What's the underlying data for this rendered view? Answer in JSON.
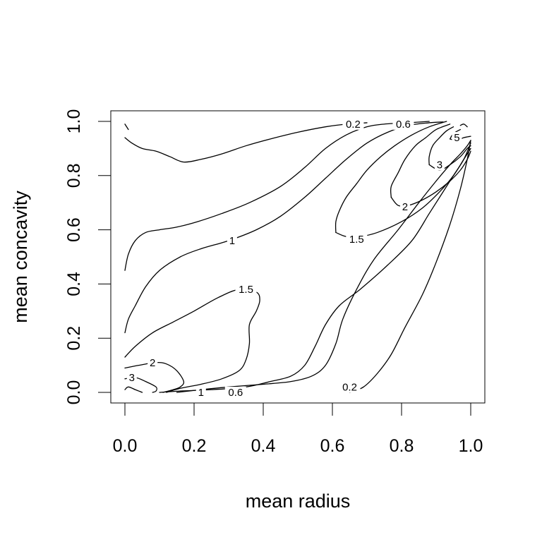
{
  "chart_data": {
    "type": "contour",
    "title": "",
    "xlabel": "mean radius",
    "ylabel": "mean concavity",
    "xlim": [
      0.0,
      1.0
    ],
    "ylim": [
      0.0,
      1.0
    ],
    "x_ticks": [
      "0.0",
      "0.2",
      "0.4",
      "0.6",
      "0.8",
      "1.0"
    ],
    "y_ticks": [
      "0.0",
      "0.2",
      "0.4",
      "0.6",
      "0.8",
      "1.0"
    ],
    "grid": false,
    "levels": [
      {
        "level": "0.2",
        "paths": [
          [
            [
              0.0,
              0.99
            ],
            [
              0.01,
              0.97
            ]
          ],
          [
            [
              0.0,
              0.94
            ],
            [
              0.02,
              0.92
            ],
            [
              0.05,
              0.9
            ],
            [
              0.09,
              0.89
            ],
            [
              0.13,
              0.87
            ],
            [
              0.17,
              0.85
            ],
            [
              0.22,
              0.86
            ],
            [
              0.28,
              0.88
            ],
            [
              0.35,
              0.91
            ],
            [
              0.42,
              0.935
            ],
            [
              0.5,
              0.96
            ],
            [
              0.58,
              0.98
            ],
            [
              0.64,
              0.99
            ],
            [
              0.7,
              0.995
            ]
          ],
          [
            [
              0.65,
              0.0
            ],
            [
              0.69,
              0.02
            ],
            [
              0.73,
              0.07
            ],
            [
              0.77,
              0.14
            ],
            [
              0.81,
              0.24
            ],
            [
              0.86,
              0.36
            ],
            [
              0.9,
              0.48
            ],
            [
              0.94,
              0.62
            ],
            [
              0.97,
              0.75
            ],
            [
              0.99,
              0.86
            ],
            [
              1.0,
              0.93
            ]
          ]
        ],
        "label_positions": [
          [
            0.66,
            0.99
          ],
          [
            0.65,
            0.02
          ]
        ]
      },
      {
        "level": "0.6",
        "paths": [
          [
            [
              0.0,
              0.45
            ],
            [
              0.01,
              0.51
            ],
            [
              0.03,
              0.56
            ],
            [
              0.06,
              0.59
            ],
            [
              0.1,
              0.6
            ],
            [
              0.15,
              0.61
            ],
            [
              0.21,
              0.63
            ],
            [
              0.28,
              0.66
            ],
            [
              0.36,
              0.7
            ],
            [
              0.45,
              0.76
            ],
            [
              0.52,
              0.83
            ],
            [
              0.58,
              0.9
            ],
            [
              0.64,
              0.95
            ],
            [
              0.7,
              0.98
            ],
            [
              0.75,
              0.99
            ],
            [
              0.82,
              0.995
            ],
            [
              0.88,
              1.0
            ]
          ],
          [
            [
              0.15,
              0.0
            ],
            [
              0.22,
              0.01
            ],
            [
              0.3,
              0.02
            ],
            [
              0.4,
              0.03
            ],
            [
              0.48,
              0.04
            ],
            [
              0.54,
              0.06
            ],
            [
              0.58,
              0.1
            ],
            [
              0.61,
              0.18
            ],
            [
              0.63,
              0.27
            ],
            [
              0.67,
              0.38
            ],
            [
              0.72,
              0.49
            ],
            [
              0.79,
              0.6
            ],
            [
              0.85,
              0.7
            ],
            [
              0.9,
              0.78
            ],
            [
              0.94,
              0.84
            ],
            [
              0.97,
              0.88
            ],
            [
              0.99,
              0.91
            ],
            [
              1.0,
              0.93
            ]
          ]
        ],
        "label_positions": [
          [
            0.805,
            0.99
          ],
          [
            0.32,
            0.0
          ]
        ]
      },
      {
        "level": "1",
        "paths": [
          [
            [
              0.0,
              0.22
            ],
            [
              0.01,
              0.27
            ],
            [
              0.03,
              0.32
            ],
            [
              0.06,
              0.39
            ],
            [
              0.1,
              0.45
            ],
            [
              0.16,
              0.5
            ],
            [
              0.22,
              0.53
            ],
            [
              0.3,
              0.56
            ],
            [
              0.38,
              0.6
            ],
            [
              0.45,
              0.65
            ],
            [
              0.52,
              0.72
            ],
            [
              0.58,
              0.79
            ],
            [
              0.64,
              0.86
            ],
            [
              0.7,
              0.92
            ],
            [
              0.76,
              0.96
            ],
            [
              0.82,
              0.985
            ],
            [
              0.88,
              0.995
            ],
            [
              0.92,
              0.998
            ]
          ],
          [
            [
              0.1,
              0.0
            ],
            [
              0.16,
              0.005
            ],
            [
              0.25,
              0.01
            ],
            [
              0.35,
              0.02
            ],
            [
              0.42,
              0.04
            ],
            [
              0.48,
              0.06
            ],
            [
              0.52,
              0.1
            ],
            [
              0.55,
              0.17
            ],
            [
              0.58,
              0.25
            ],
            [
              0.62,
              0.32
            ],
            [
              0.68,
              0.38
            ],
            [
              0.76,
              0.47
            ],
            [
              0.83,
              0.56
            ],
            [
              0.88,
              0.66
            ],
            [
              0.92,
              0.74
            ],
            [
              0.95,
              0.8
            ],
            [
              0.98,
              0.86
            ],
            [
              1.0,
              0.92
            ]
          ]
        ],
        "label_positions": [
          [
            0.31,
            0.56
          ],
          [
            0.22,
            0.0
          ]
        ]
      },
      {
        "level": "1.5",
        "paths": [
          [
            [
              0.0,
              0.13
            ],
            [
              0.03,
              0.17
            ],
            [
              0.08,
              0.22
            ],
            [
              0.14,
              0.26
            ],
            [
              0.2,
              0.3
            ],
            [
              0.27,
              0.35
            ],
            [
              0.33,
              0.38
            ],
            [
              0.38,
              0.37
            ],
            [
              0.39,
              0.34
            ],
            [
              0.38,
              0.3
            ],
            [
              0.36,
              0.25
            ],
            [
              0.36,
              0.18
            ],
            [
              0.35,
              0.12
            ],
            [
              0.33,
              0.08
            ],
            [
              0.28,
              0.05
            ],
            [
              0.22,
              0.03
            ],
            [
              0.16,
              0.015
            ],
            [
              0.12,
              0.0
            ]
          ],
          [
            [
              0.61,
              0.59
            ],
            [
              0.61,
              0.63
            ],
            [
              0.62,
              0.67
            ],
            [
              0.64,
              0.72
            ],
            [
              0.67,
              0.77
            ],
            [
              0.7,
              0.82
            ],
            [
              0.74,
              0.87
            ],
            [
              0.78,
              0.91
            ],
            [
              0.83,
              0.95
            ],
            [
              0.88,
              0.98
            ],
            [
              0.93,
              1.0
            ]
          ],
          [
            [
              0.61,
              0.59
            ],
            [
              0.64,
              0.575
            ],
            [
              0.68,
              0.575
            ],
            [
              0.73,
              0.59
            ],
            [
              0.8,
              0.63
            ],
            [
              0.86,
              0.68
            ],
            [
              0.91,
              0.74
            ],
            [
              0.95,
              0.8
            ],
            [
              0.98,
              0.86
            ],
            [
              1.0,
              0.9
            ]
          ]
        ],
        "label_positions": [
          [
            0.35,
            0.38
          ],
          [
            0.67,
            0.565
          ]
        ]
      },
      {
        "level": "2",
        "paths": [
          [
            [
              0.0,
              0.09
            ],
            [
              0.04,
              0.1
            ],
            [
              0.09,
              0.11
            ],
            [
              0.12,
              0.105
            ],
            [
              0.15,
              0.08
            ],
            [
              0.17,
              0.04
            ],
            [
              0.16,
              0.02
            ],
            [
              0.14,
              0.01
            ],
            [
              0.11,
              0.0
            ]
          ],
          [
            [
              0.77,
              0.72
            ],
            [
              0.77,
              0.76
            ],
            [
              0.79,
              0.81
            ],
            [
              0.81,
              0.86
            ],
            [
              0.84,
              0.91
            ],
            [
              0.87,
              0.94
            ],
            [
              0.9,
              0.97
            ],
            [
              0.94,
              0.99
            ]
          ],
          [
            [
              0.77,
              0.72
            ],
            [
              0.79,
              0.69
            ],
            [
              0.82,
              0.69
            ],
            [
              0.86,
              0.71
            ],
            [
              0.9,
              0.74
            ],
            [
              0.94,
              0.78
            ],
            [
              0.97,
              0.82
            ],
            [
              0.99,
              0.86
            ],
            [
              1.0,
              0.89
            ]
          ]
        ],
        "label_positions": [
          [
            0.08,
            0.11
          ],
          [
            0.81,
            0.685
          ]
        ]
      },
      {
        "level": "3",
        "paths": [
          [
            [
              0.0,
              0.05
            ],
            [
              0.03,
              0.055
            ],
            [
              0.06,
              0.04
            ],
            [
              0.09,
              0.02
            ],
            [
              0.09,
              0.005
            ],
            [
              0.08,
              0.0
            ]
          ],
          [
            [
              0.88,
              0.84
            ],
            [
              0.88,
              0.87
            ],
            [
              0.89,
              0.91
            ],
            [
              0.91,
              0.94
            ],
            [
              0.93,
              0.965
            ],
            [
              0.95,
              0.98
            ]
          ],
          [
            [
              0.88,
              0.84
            ],
            [
              0.91,
              0.82
            ],
            [
              0.94,
              0.84
            ],
            [
              0.97,
              0.87
            ],
            [
              0.99,
              0.9
            ],
            [
              1.0,
              0.91
            ]
          ]
        ],
        "label_positions": [
          [
            0.02,
            0.055
          ],
          [
            0.91,
            0.84
          ]
        ]
      },
      {
        "level": "5",
        "paths": [
          [
            [
              0.94,
              0.935
            ],
            [
              0.95,
              0.955
            ],
            [
              0.97,
              0.97
            ]
          ],
          [
            [
              0.94,
              0.935
            ],
            [
              0.96,
              0.93
            ],
            [
              0.98,
              0.94
            ],
            [
              1.0,
              0.945
            ]
          ]
        ],
        "label_positions": [
          [
            0.96,
            0.94
          ]
        ]
      },
      {
        "level": "",
        "paths": [
          [
            [
              0.0,
              0.01
            ],
            [
              0.01,
              0.02
            ],
            [
              0.03,
              0.01
            ],
            [
              0.04,
              0.005
            ],
            [
              0.05,
              0.0
            ]
          ],
          [
            [
              0.97,
              0.985
            ],
            [
              0.98,
              0.99
            ],
            [
              0.99,
              0.98
            ]
          ]
        ],
        "label_positions": []
      }
    ]
  }
}
